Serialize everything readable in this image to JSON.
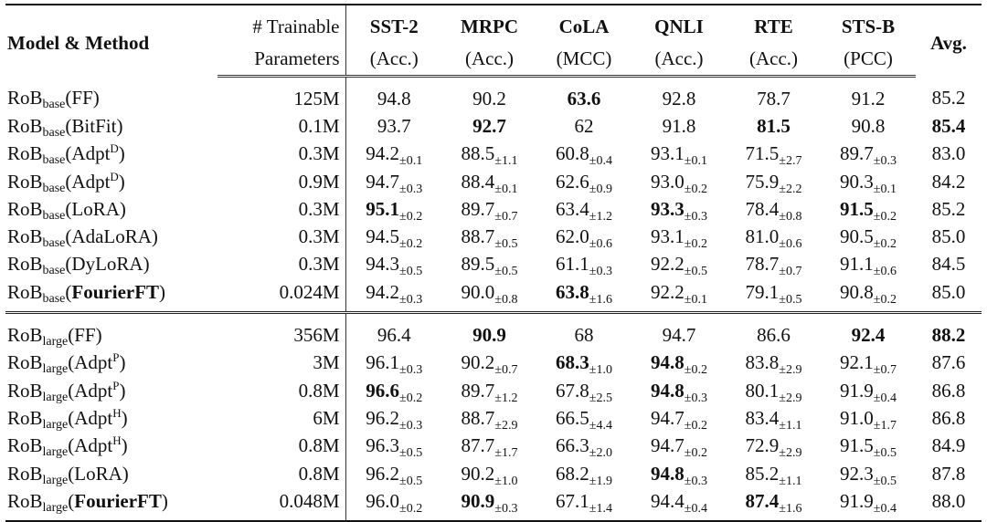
{
  "header": {
    "model": "Model & Method",
    "params_line1": "# Trainable",
    "params_line2": "Parameters",
    "tasks": [
      {
        "name": "SST-2",
        "metric": "(Acc.)"
      },
      {
        "name": "MRPC",
        "metric": "(Acc.)"
      },
      {
        "name": "CoLA",
        "metric": "(MCC)"
      },
      {
        "name": "QNLI",
        "metric": "(Acc.)"
      },
      {
        "name": "RTE",
        "metric": "(Acc.)"
      },
      {
        "name": "STS-B",
        "metric": "(PCC)"
      }
    ],
    "avg": "Avg."
  },
  "groups": [
    {
      "rows": [
        {
          "base": "RoB",
          "sub": "base",
          "method": "FF",
          "sup": "",
          "method_bold": false,
          "params": "125M",
          "cells": [
            {
              "v": "94.8",
              "sd": "",
              "b": false
            },
            {
              "v": "90.2",
              "sd": "",
              "b": false
            },
            {
              "v": "63.6",
              "sd": "",
              "b": true
            },
            {
              "v": "92.8",
              "sd": "",
              "b": false
            },
            {
              "v": "78.7",
              "sd": "",
              "b": false
            },
            {
              "v": "91.2",
              "sd": "",
              "b": false
            }
          ],
          "avg": "85.2",
          "avg_bold": false
        },
        {
          "base": "RoB",
          "sub": "base",
          "method": "BitFit",
          "sup": "",
          "method_bold": false,
          "params": "0.1M",
          "cells": [
            {
              "v": "93.7",
              "sd": "",
              "b": false
            },
            {
              "v": "92.7",
              "sd": "",
              "b": true
            },
            {
              "v": "62",
              "sd": "",
              "b": false
            },
            {
              "v": "91.8",
              "sd": "",
              "b": false
            },
            {
              "v": "81.5",
              "sd": "",
              "b": true
            },
            {
              "v": "90.8",
              "sd": "",
              "b": false
            }
          ],
          "avg": "85.4",
          "avg_bold": true
        },
        {
          "base": "RoB",
          "sub": "base",
          "method": "Adpt",
          "sup": "D",
          "method_bold": false,
          "params": "0.3M",
          "cells": [
            {
              "v": "94.2",
              "sd": "±0.1",
              "b": false
            },
            {
              "v": "88.5",
              "sd": "±1.1",
              "b": false
            },
            {
              "v": "60.8",
              "sd": "±0.4",
              "b": false
            },
            {
              "v": "93.1",
              "sd": "±0.1",
              "b": false
            },
            {
              "v": "71.5",
              "sd": "±2.7",
              "b": false
            },
            {
              "v": "89.7",
              "sd": "±0.3",
              "b": false
            }
          ],
          "avg": "83.0",
          "avg_bold": false
        },
        {
          "base": "RoB",
          "sub": "base",
          "method": "Adpt",
          "sup": "D",
          "method_bold": false,
          "params": "0.9M",
          "cells": [
            {
              "v": "94.7",
              "sd": "±0.3",
              "b": false
            },
            {
              "v": "88.4",
              "sd": "±0.1",
              "b": false
            },
            {
              "v": "62.6",
              "sd": "±0.9",
              "b": false
            },
            {
              "v": "93.0",
              "sd": "±0.2",
              "b": false
            },
            {
              "v": "75.9",
              "sd": "±2.2",
              "b": false
            },
            {
              "v": "90.3",
              "sd": "±0.1",
              "b": false
            }
          ],
          "avg": "84.2",
          "avg_bold": false
        },
        {
          "base": "RoB",
          "sub": "base",
          "method": "LoRA",
          "sup": "",
          "method_bold": false,
          "params": "0.3M",
          "cells": [
            {
              "v": "95.1",
              "sd": "±0.2",
              "b": true
            },
            {
              "v": "89.7",
              "sd": "±0.7",
              "b": false
            },
            {
              "v": "63.4",
              "sd": "±1.2",
              "b": false
            },
            {
              "v": "93.3",
              "sd": "±0.3",
              "b": true
            },
            {
              "v": "78.4",
              "sd": "±0.8",
              "b": false
            },
            {
              "v": "91.5",
              "sd": "±0.2",
              "b": true
            }
          ],
          "avg": "85.2",
          "avg_bold": false
        },
        {
          "base": "RoB",
          "sub": "base",
          "method": "AdaLoRA",
          "sup": "",
          "method_bold": false,
          "params": "0.3M",
          "cells": [
            {
              "v": "94.5",
              "sd": "±0.2",
              "b": false
            },
            {
              "v": "88.7",
              "sd": "±0.5",
              "b": false
            },
            {
              "v": "62.0",
              "sd": "±0.6",
              "b": false
            },
            {
              "v": "93.1",
              "sd": "±0.2",
              "b": false
            },
            {
              "v": "81.0",
              "sd": "±0.6",
              "b": false
            },
            {
              "v": "90.5",
              "sd": "±0.2",
              "b": false
            }
          ],
          "avg": "85.0",
          "avg_bold": false
        },
        {
          "base": "RoB",
          "sub": "base",
          "method": "DyLoRA",
          "sup": "",
          "method_bold": false,
          "params": "0.3M",
          "cells": [
            {
              "v": "94.3",
              "sd": "±0.5",
              "b": false
            },
            {
              "v": "89.5",
              "sd": "±0.5",
              "b": false
            },
            {
              "v": "61.1",
              "sd": "±0.3",
              "b": false
            },
            {
              "v": "92.2",
              "sd": "±0.5",
              "b": false
            },
            {
              "v": "78.7",
              "sd": "±0.7",
              "b": false
            },
            {
              "v": "91.1",
              "sd": "±0.6",
              "b": false
            }
          ],
          "avg": "84.5",
          "avg_bold": false
        },
        {
          "base": "RoB",
          "sub": "base",
          "method": "FourierFT",
          "sup": "",
          "method_bold": true,
          "params": "0.024M",
          "cells": [
            {
              "v": "94.2",
              "sd": "±0.3",
              "b": false
            },
            {
              "v": "90.0",
              "sd": "±0.8",
              "b": false
            },
            {
              "v": "63.8",
              "sd": "±1.6",
              "b": true
            },
            {
              "v": "92.2",
              "sd": "±0.1",
              "b": false
            },
            {
              "v": "79.1",
              "sd": "±0.5",
              "b": false
            },
            {
              "v": "90.8",
              "sd": "±0.2",
              "b": false
            }
          ],
          "avg": "85.0",
          "avg_bold": false
        }
      ]
    },
    {
      "rows": [
        {
          "base": "RoB",
          "sub": "large",
          "method": "FF",
          "sup": "",
          "method_bold": false,
          "params": "356M",
          "cells": [
            {
              "v": "96.4",
              "sd": "",
              "b": false
            },
            {
              "v": "90.9",
              "sd": "",
              "b": true
            },
            {
              "v": "68",
              "sd": "",
              "b": false
            },
            {
              "v": "94.7",
              "sd": "",
              "b": false
            },
            {
              "v": "86.6",
              "sd": "",
              "b": false
            },
            {
              "v": "92.4",
              "sd": "",
              "b": true
            }
          ],
          "avg": "88.2",
          "avg_bold": true
        },
        {
          "base": "RoB",
          "sub": "large",
          "method": "Adpt",
          "sup": "P",
          "method_bold": false,
          "params": "3M",
          "cells": [
            {
              "v": "96.1",
              "sd": "±0.3",
              "b": false
            },
            {
              "v": "90.2",
              "sd": "±0.7",
              "b": false
            },
            {
              "v": "68.3",
              "sd": "±1.0",
              "b": true
            },
            {
              "v": "94.8",
              "sd": "±0.2",
              "b": true
            },
            {
              "v": "83.8",
              "sd": "±2.9",
              "b": false
            },
            {
              "v": "92.1",
              "sd": "±0.7",
              "b": false
            }
          ],
          "avg": "87.6",
          "avg_bold": false
        },
        {
          "base": "RoB",
          "sub": "large",
          "method": "Adpt",
          "sup": "P",
          "method_bold": false,
          "params": "0.8M",
          "cells": [
            {
              "v": "96.6",
              "sd": "±0.2",
              "b": true
            },
            {
              "v": "89.7",
              "sd": "±1.2",
              "b": false
            },
            {
              "v": "67.8",
              "sd": "±2.5",
              "b": false
            },
            {
              "v": "94.8",
              "sd": "±0.3",
              "b": true
            },
            {
              "v": "80.1",
              "sd": "±2.9",
              "b": false
            },
            {
              "v": "91.9",
              "sd": "±0.4",
              "b": false
            }
          ],
          "avg": "86.8",
          "avg_bold": false
        },
        {
          "base": "RoB",
          "sub": "large",
          "method": "Adpt",
          "sup": "H",
          "method_bold": false,
          "params": "6M",
          "cells": [
            {
              "v": "96.2",
              "sd": "±0.3",
              "b": false
            },
            {
              "v": "88.7",
              "sd": "±2.9",
              "b": false
            },
            {
              "v": "66.5",
              "sd": "±4.4",
              "b": false
            },
            {
              "v": "94.7",
              "sd": "±0.2",
              "b": false
            },
            {
              "v": "83.4",
              "sd": "±1.1",
              "b": false
            },
            {
              "v": "91.0",
              "sd": "±1.7",
              "b": false
            }
          ],
          "avg": "86.8",
          "avg_bold": false
        },
        {
          "base": "RoB",
          "sub": "large",
          "method": "Adpt",
          "sup": "H",
          "method_bold": false,
          "params": "0.8M",
          "cells": [
            {
              "v": "96.3",
              "sd": "±0.5",
              "b": false
            },
            {
              "v": "87.7",
              "sd": "±1.7",
              "b": false
            },
            {
              "v": "66.3",
              "sd": "±2.0",
              "b": false
            },
            {
              "v": "94.7",
              "sd": "±0.2",
              "b": false
            },
            {
              "v": "72.9",
              "sd": "±2.9",
              "b": false
            },
            {
              "v": "91.5",
              "sd": "±0.5",
              "b": false
            }
          ],
          "avg": "84.9",
          "avg_bold": false
        },
        {
          "base": "RoB",
          "sub": "large",
          "method": "LoRA",
          "sup": "",
          "method_bold": false,
          "params": "0.8M",
          "cells": [
            {
              "v": "96.2",
              "sd": "±0.5",
              "b": false
            },
            {
              "v": "90.2",
              "sd": "±1.0",
              "b": false
            },
            {
              "v": "68.2",
              "sd": "±1.9",
              "b": false
            },
            {
              "v": "94.8",
              "sd": "±0.3",
              "b": true
            },
            {
              "v": "85.2",
              "sd": "±1.1",
              "b": false
            },
            {
              "v": "92.3",
              "sd": "±0.5",
              "b": false
            }
          ],
          "avg": "87.8",
          "avg_bold": false
        },
        {
          "base": "RoB",
          "sub": "large",
          "method": "FourierFT",
          "sup": "",
          "method_bold": true,
          "params": "0.048M",
          "cells": [
            {
              "v": "96.0",
              "sd": "±0.2",
              "b": false
            },
            {
              "v": "90.9",
              "sd": "±0.3",
              "b": true
            },
            {
              "v": "67.1",
              "sd": "±1.4",
              "b": false
            },
            {
              "v": "94.4",
              "sd": "±0.4",
              "b": false
            },
            {
              "v": "87.4",
              "sd": "±1.6",
              "b": true
            },
            {
              "v": "91.9",
              "sd": "±0.4",
              "b": false
            }
          ],
          "avg": "88.0",
          "avg_bold": false
        }
      ]
    }
  ]
}
